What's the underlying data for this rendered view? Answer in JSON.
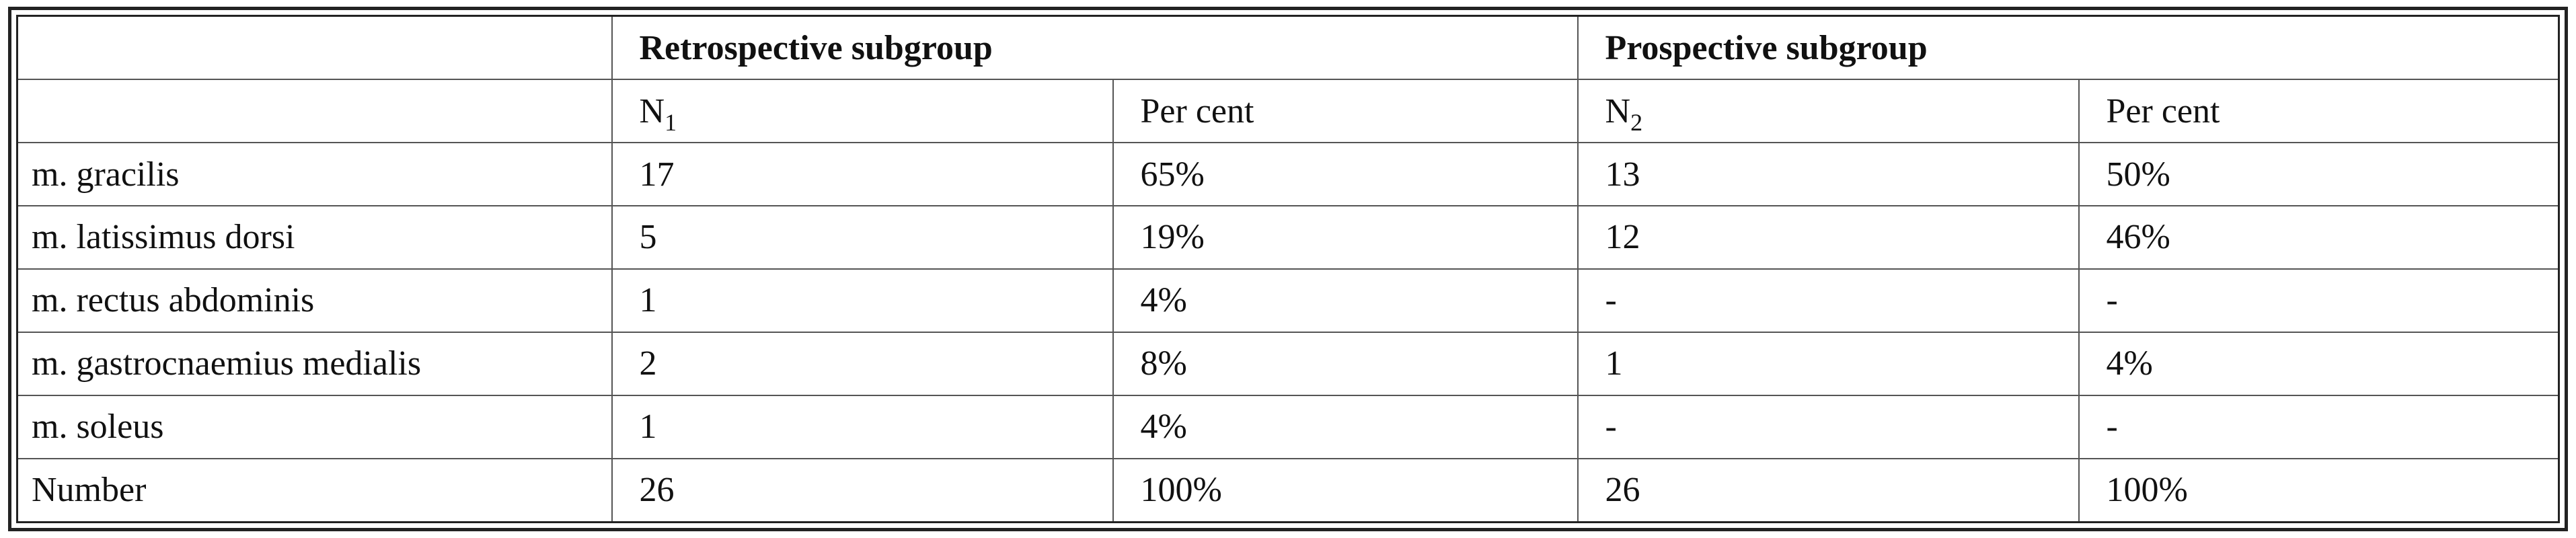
{
  "table": {
    "header": {
      "groups": [
        "Retrospective subgroup",
        "Prospective subgroup"
      ],
      "columns": [
        {
          "main": "N",
          "sub": "1"
        },
        "Per cent",
        {
          "main": "N",
          "sub": "2"
        },
        "Per cent"
      ]
    },
    "rows": [
      [
        "m. gracilis",
        "17",
        "65%",
        "13",
        "50%"
      ],
      [
        "m. latissimus dorsi",
        "5",
        "19%",
        "12",
        "46%"
      ],
      [
        "m. rectus abdominis",
        "1",
        "4%",
        "-",
        "-"
      ],
      [
        "m. gastrocnaemius medialis",
        "2",
        "8%",
        "1",
        "4%"
      ],
      [
        "m. soleus",
        "1",
        "4%",
        "-",
        "-"
      ],
      [
        "Number",
        "26",
        "100%",
        "26",
        "100%"
      ]
    ]
  }
}
